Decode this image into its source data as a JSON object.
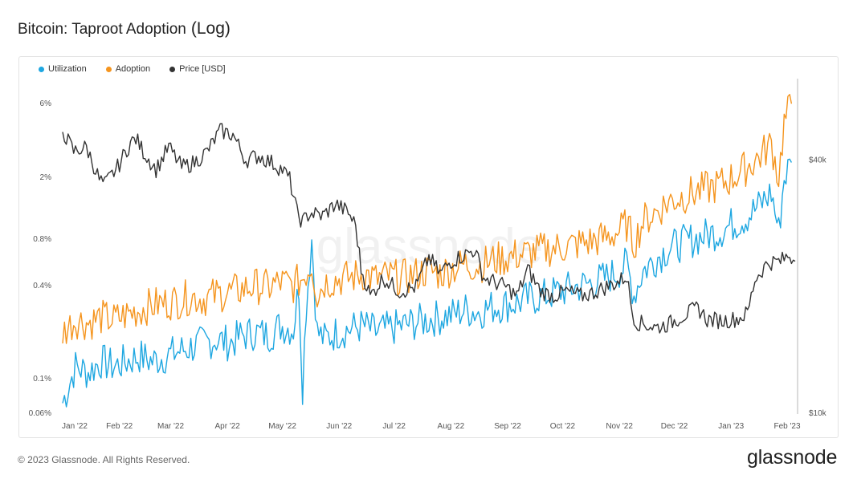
{
  "header": {
    "title": "Bitcoin: Taproot Adoption",
    "title_suffix": "(Log)"
  },
  "footer": {
    "copyright": "© 2023 Glassnode. All Rights Reserved.",
    "brand": "glassnode"
  },
  "watermark": "glassnode",
  "chart_data": {
    "type": "line",
    "title": "Bitcoin: Taproot Adoption (Log)",
    "legend_position": "top-left",
    "grid": false,
    "x_range": [
      "2022-01-01",
      "2023-02-05"
    ],
    "x_ticks": [
      "Jan '22",
      "Feb '22",
      "Mar '22",
      "Apr '22",
      "May '22",
      "Jun '22",
      "Jul '22",
      "Aug '22",
      "Sep '22",
      "Oct '22",
      "Nov '22",
      "Dec '22",
      "Jan '23",
      "Feb '23"
    ],
    "y_left": {
      "scale": "log",
      "range": [
        0.06,
        8.5
      ],
      "ticks": [
        0.06,
        0.1,
        0.4,
        0.8,
        2,
        6
      ],
      "tick_labels": [
        "0.06%",
        "0.1%",
        "0.4%",
        "0.8%",
        "2%",
        "6%"
      ]
    },
    "y_right": {
      "scale": "log",
      "range": [
        10000,
        62000
      ],
      "ticks": [
        10000,
        40000
      ],
      "tick_labels": [
        "$10k",
        "$40k"
      ]
    },
    "series": [
      {
        "name": "Utilization",
        "color": "#1ea7e1",
        "axis": "left",
        "unit": "%",
        "points": [
          [
            "2022-01-01",
            0.07
          ],
          [
            "2022-01-08",
            0.12
          ],
          [
            "2022-01-15",
            0.11
          ],
          [
            "2022-01-22",
            0.13
          ],
          [
            "2022-01-29",
            0.12
          ],
          [
            "2022-02-05",
            0.13
          ],
          [
            "2022-02-12",
            0.14
          ],
          [
            "2022-02-19",
            0.13
          ],
          [
            "2022-02-26",
            0.14
          ],
          [
            "2022-03-05",
            0.15
          ],
          [
            "2022-03-12",
            0.16
          ],
          [
            "2022-03-19",
            0.17
          ],
          [
            "2022-03-26",
            0.18
          ],
          [
            "2022-04-02",
            0.17
          ],
          [
            "2022-04-09",
            0.19
          ],
          [
            "2022-04-16",
            0.2
          ],
          [
            "2022-04-23",
            0.19
          ],
          [
            "2022-04-30",
            0.22
          ],
          [
            "2022-05-07",
            0.21
          ],
          [
            "2022-05-10",
            0.4
          ],
          [
            "2022-05-12",
            0.09
          ],
          [
            "2022-05-14",
            0.3
          ],
          [
            "2022-05-17",
            0.8
          ],
          [
            "2022-05-20",
            0.2
          ],
          [
            "2022-05-24",
            0.18
          ],
          [
            "2022-05-31",
            0.2
          ],
          [
            "2022-06-07",
            0.21
          ],
          [
            "2022-06-14",
            0.22
          ],
          [
            "2022-06-21",
            0.2
          ],
          [
            "2022-06-28",
            0.21
          ],
          [
            "2022-07-05",
            0.22
          ],
          [
            "2022-07-12",
            0.23
          ],
          [
            "2022-07-19",
            0.24
          ],
          [
            "2022-07-26",
            0.25
          ],
          [
            "2022-08-02",
            0.26
          ],
          [
            "2022-08-09",
            0.28
          ],
          [
            "2022-08-16",
            0.27
          ],
          [
            "2022-08-23",
            0.29
          ],
          [
            "2022-08-30",
            0.3
          ],
          [
            "2022-09-06",
            0.31
          ],
          [
            "2022-09-13",
            0.33
          ],
          [
            "2022-09-20",
            0.34
          ],
          [
            "2022-09-27",
            0.36
          ],
          [
            "2022-10-04",
            0.38
          ],
          [
            "2022-10-11",
            0.4
          ],
          [
            "2022-10-18",
            0.42
          ],
          [
            "2022-10-25",
            0.45
          ],
          [
            "2022-11-01",
            0.5
          ],
          [
            "2022-11-05",
            0.55
          ],
          [
            "2022-11-09",
            0.35
          ],
          [
            "2022-11-14",
            0.5
          ],
          [
            "2022-11-21",
            0.6
          ],
          [
            "2022-11-28",
            0.7
          ],
          [
            "2022-12-05",
            0.75
          ],
          [
            "2022-12-12",
            0.8
          ],
          [
            "2022-12-19",
            0.85
          ],
          [
            "2022-12-26",
            0.9
          ],
          [
            "2023-01-02",
            1.0
          ],
          [
            "2023-01-09",
            1.1
          ],
          [
            "2023-01-16",
            1.3
          ],
          [
            "2023-01-23",
            1.6
          ],
          [
            "2023-01-27",
            0.9
          ],
          [
            "2023-01-30",
            2.0
          ],
          [
            "2023-02-03",
            2.5
          ]
        ]
      },
      {
        "name": "Adoption",
        "color": "#f5951f",
        "axis": "left",
        "unit": "%",
        "points": [
          [
            "2022-01-01",
            0.2
          ],
          [
            "2022-01-08",
            0.24
          ],
          [
            "2022-01-15",
            0.23
          ],
          [
            "2022-01-22",
            0.25
          ],
          [
            "2022-01-29",
            0.24
          ],
          [
            "2022-02-05",
            0.26
          ],
          [
            "2022-02-12",
            0.28
          ],
          [
            "2022-02-19",
            0.3
          ],
          [
            "2022-02-26",
            0.31
          ],
          [
            "2022-03-05",
            0.32
          ],
          [
            "2022-03-12",
            0.34
          ],
          [
            "2022-03-19",
            0.33
          ],
          [
            "2022-03-26",
            0.35
          ],
          [
            "2022-04-02",
            0.36
          ],
          [
            "2022-04-09",
            0.38
          ],
          [
            "2022-04-16",
            0.4
          ],
          [
            "2022-04-23",
            0.39
          ],
          [
            "2022-04-30",
            0.42
          ],
          [
            "2022-05-07",
            0.4
          ],
          [
            "2022-05-12",
            0.45
          ],
          [
            "2022-05-17",
            0.55
          ],
          [
            "2022-05-20",
            0.35
          ],
          [
            "2022-05-24",
            0.42
          ],
          [
            "2022-05-31",
            0.44
          ],
          [
            "2022-06-07",
            0.45
          ],
          [
            "2022-06-14",
            0.48
          ],
          [
            "2022-06-21",
            0.44
          ],
          [
            "2022-06-28",
            0.46
          ],
          [
            "2022-07-05",
            0.45
          ],
          [
            "2022-07-12",
            0.47
          ],
          [
            "2022-07-19",
            0.5
          ],
          [
            "2022-07-26",
            0.48
          ],
          [
            "2022-08-02",
            0.52
          ],
          [
            "2022-08-09",
            0.55
          ],
          [
            "2022-08-16",
            0.54
          ],
          [
            "2022-08-23",
            0.58
          ],
          [
            "2022-08-30",
            0.6
          ],
          [
            "2022-09-06",
            0.63
          ],
          [
            "2022-09-13",
            0.65
          ],
          [
            "2022-09-20",
            0.68
          ],
          [
            "2022-09-27",
            0.7
          ],
          [
            "2022-10-04",
            0.72
          ],
          [
            "2022-10-11",
            0.75
          ],
          [
            "2022-10-18",
            0.78
          ],
          [
            "2022-10-25",
            0.82
          ],
          [
            "2022-11-01",
            0.9
          ],
          [
            "2022-11-05",
            1.0
          ],
          [
            "2022-11-09",
            0.75
          ],
          [
            "2022-11-14",
            1.05
          ],
          [
            "2022-11-21",
            1.2
          ],
          [
            "2022-11-28",
            1.4
          ],
          [
            "2022-12-05",
            1.5
          ],
          [
            "2022-12-12",
            1.6
          ],
          [
            "2022-12-19",
            1.7
          ],
          [
            "2022-12-26",
            1.8
          ],
          [
            "2023-01-02",
            2.0
          ],
          [
            "2023-01-09",
            2.3
          ],
          [
            "2023-01-16",
            2.7
          ],
          [
            "2023-01-23",
            3.3
          ],
          [
            "2023-01-27",
            2.0
          ],
          [
            "2023-01-30",
            4.5
          ],
          [
            "2023-02-03",
            6.0
          ]
        ]
      },
      {
        "name": "Price [USD]",
        "color": "#333333",
        "axis": "right",
        "unit": "USD",
        "points": [
          [
            "2022-01-01",
            47000
          ],
          [
            "2022-01-07",
            42000
          ],
          [
            "2022-01-14",
            43000
          ],
          [
            "2022-01-21",
            36000
          ],
          [
            "2022-01-24",
            35000
          ],
          [
            "2022-01-31",
            38500
          ],
          [
            "2022-02-07",
            44000
          ],
          [
            "2022-02-10",
            45000
          ],
          [
            "2022-02-14",
            42000
          ],
          [
            "2022-02-21",
            38000
          ],
          [
            "2022-02-28",
            43000
          ],
          [
            "2022-03-07",
            38500
          ],
          [
            "2022-03-14",
            39500
          ],
          [
            "2022-03-21",
            42000
          ],
          [
            "2022-03-28",
            47000
          ],
          [
            "2022-04-04",
            46000
          ],
          [
            "2022-04-11",
            40000
          ],
          [
            "2022-04-18",
            41000
          ],
          [
            "2022-04-25",
            39500
          ],
          [
            "2022-05-01",
            38000
          ],
          [
            "2022-05-05",
            36000
          ],
          [
            "2022-05-09",
            30000
          ],
          [
            "2022-05-12",
            28500
          ],
          [
            "2022-05-16",
            30000
          ],
          [
            "2022-05-23",
            29500
          ],
          [
            "2022-05-30",
            31500
          ],
          [
            "2022-06-06",
            30000
          ],
          [
            "2022-06-10",
            28000
          ],
          [
            "2022-06-13",
            22000
          ],
          [
            "2022-06-18",
            19000
          ],
          [
            "2022-06-25",
            21000
          ],
          [
            "2022-07-04",
            19500
          ],
          [
            "2022-07-13",
            20000
          ],
          [
            "2022-07-20",
            23500
          ],
          [
            "2022-07-26",
            21500
          ],
          [
            "2022-08-01",
            23000
          ],
          [
            "2022-08-10",
            24000
          ],
          [
            "2022-08-14",
            24500
          ],
          [
            "2022-08-19",
            21000
          ],
          [
            "2022-08-31",
            20000
          ],
          [
            "2022-09-06",
            19000
          ],
          [
            "2022-09-12",
            22000
          ],
          [
            "2022-09-19",
            19500
          ],
          [
            "2022-09-26",
            19000
          ],
          [
            "2022-10-03",
            19500
          ],
          [
            "2022-10-11",
            19000
          ],
          [
            "2022-10-17",
            19300
          ],
          [
            "2022-10-25",
            20000
          ],
          [
            "2022-10-31",
            20500
          ],
          [
            "2022-11-05",
            21200
          ],
          [
            "2022-11-08",
            17500
          ],
          [
            "2022-11-10",
            16500
          ],
          [
            "2022-11-21",
            16000
          ],
          [
            "2022-11-28",
            16300
          ],
          [
            "2022-12-05",
            17000
          ],
          [
            "2022-12-14",
            17800
          ],
          [
            "2022-12-19",
            16700
          ],
          [
            "2022-12-28",
            16600
          ],
          [
            "2023-01-05",
            16800
          ],
          [
            "2023-01-10",
            17300
          ],
          [
            "2023-01-14",
            20800
          ],
          [
            "2023-01-21",
            22800
          ],
          [
            "2023-01-28",
            23000
          ],
          [
            "2023-02-02",
            23800
          ],
          [
            "2023-02-05",
            23000
          ]
        ]
      }
    ]
  }
}
